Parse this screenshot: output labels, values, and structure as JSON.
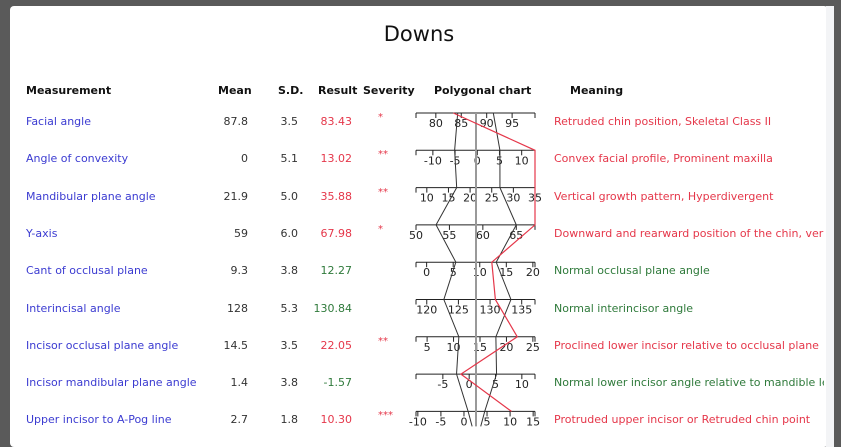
{
  "title": "Downs",
  "headers": {
    "measurement": "Measurement",
    "mean": "Mean",
    "sd": "S.D.",
    "result": "Result",
    "severity": "Severity",
    "chart": "Polygonal chart",
    "meaning": "Meaning"
  },
  "colors": {
    "name": "#3b3bd1",
    "abnormal": "#e5374a",
    "normal": "#2f7a3b",
    "mean_line": "#999999",
    "polygon": "#333333",
    "result_line": "#e5374a"
  },
  "rows": [
    {
      "name": "Facial angle",
      "mean": "87.8",
      "sd": "3.5",
      "result": "83.43",
      "severity": "*",
      "meaning": "Retruded chin position, Skeletal Class II",
      "status": "abnormal",
      "domain": [
        76.1,
        99.5
      ],
      "ticks": [
        "80",
        "85",
        "90",
        "95"
      ]
    },
    {
      "name": "Angle of convexity",
      "mean": "0",
      "sd": "5.1",
      "result": "13.02",
      "severity": "**",
      "meaning": "Convex facial profile, Prominent maxilla",
      "status": "abnormal",
      "domain": [
        -13.8,
        13.0
      ],
      "ticks": [
        "-10",
        "-5",
        "0",
        "5",
        "10"
      ]
    },
    {
      "name": "Mandibular plane angle",
      "mean": "21.9",
      "sd": "5.0",
      "result": "35.88",
      "severity": "**",
      "meaning": "Vertical growth pattern, Hyperdivergent",
      "status": "abnormal",
      "domain": [
        7.5,
        35.0
      ],
      "ticks": [
        "10",
        "15",
        "20",
        "25",
        "30",
        "35"
      ]
    },
    {
      "name": "Y-axis",
      "mean": "59",
      "sd": "6.0",
      "result": "67.98",
      "severity": "*",
      "meaning": "Downward and rearward position of the chin, ver",
      "status": "abnormal",
      "domain": [
        50,
        67.8
      ],
      "ticks": [
        "50",
        "55",
        "60",
        "65"
      ]
    },
    {
      "name": "Cant of occlusal plane",
      "mean": "9.3",
      "sd": "3.8",
      "result": "12.27",
      "severity": "",
      "meaning": "Normal occlusal plane angle",
      "status": "normal",
      "domain": [
        -2,
        20.4
      ],
      "ticks": [
        "0",
        "5",
        "10",
        "15",
        "20"
      ]
    },
    {
      "name": "Interincisal angle",
      "mean": "128",
      "sd": "5.3",
      "result": "130.84",
      "severity": "",
      "meaning": "Normal interincisor angle",
      "status": "normal",
      "domain": [
        118.3,
        137.1
      ],
      "ticks": [
        "120",
        "125",
        "130",
        "135"
      ]
    },
    {
      "name": "Incisor occlusal plane angle",
      "mean": "14.5",
      "sd": "3.5",
      "result": "22.05",
      "severity": "**",
      "meaning": "Proclined lower incisor relative to occlusal plane",
      "status": "abnormal",
      "domain": [
        2.9,
        25.4
      ],
      "ticks": [
        "5",
        "10",
        "15",
        "20",
        "25"
      ]
    },
    {
      "name": "Incisor mandibular plane angle",
      "mean": "1.4",
      "sd": "3.8",
      "result": "-1.57",
      "severity": "",
      "meaning": "Normal lower incisor angle relative to mandible le",
      "status": "normal",
      "domain": [
        -10.1,
        12.5
      ],
      "ticks": [
        "-5",
        "0",
        "5",
        "10"
      ]
    },
    {
      "name": "Upper incisor to A-Pog line",
      "mean": "2.7",
      "sd": "1.8",
      "result": "10.30",
      "severity": "***",
      "meaning": "Protruded upper incisor or Retruded chin point",
      "status": "abnormal",
      "domain": [
        -10.4,
        15.4
      ],
      "ticks": [
        "-10",
        "-5",
        "0",
        "5",
        "10",
        "15"
      ]
    }
  ]
}
